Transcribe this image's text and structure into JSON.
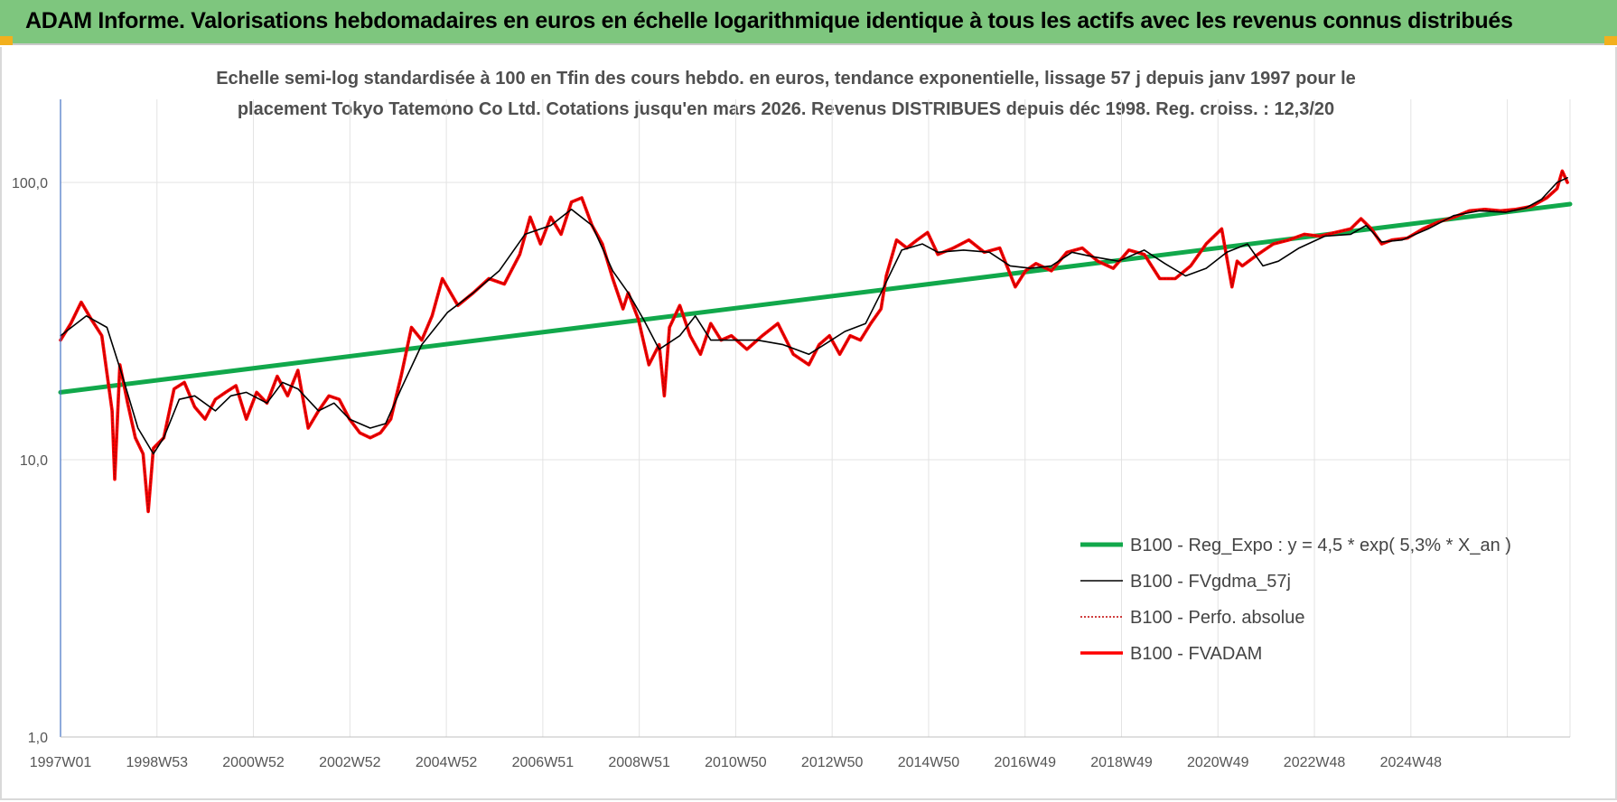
{
  "header": {
    "title": "ADAM Informe. Valorisations hebdomadaires en euros en échelle logarithmique identique à tous les actifs avec les revenus connus distribués"
  },
  "colors": {
    "header_bg": "#7ec67e",
    "regression": "#11a84b",
    "moving_average": "#000000",
    "perf_absolue": "#c00000",
    "fvadam": "#ff0000",
    "grid": "#e3e3e3",
    "axis": "#4472c4"
  },
  "chart_data": {
    "type": "line",
    "title_lines": [
      "Echelle semi-log standardisée à 100 en Tfin des cours hebdo. en euros, tendance exponentielle, lissage 57 j depuis janv 1997 pour le",
      "placement Tokyo Tatemono Co Ltd. Cotations jusqu'en mars 2026. Revenus DISTRIBUES depuis déc 1998. Reg. croiss. : 12,3/20"
    ],
    "yscale": "log",
    "ylim": [
      1,
      200
    ],
    "yticks": [
      1,
      10,
      100
    ],
    "ytick_labels": [
      "1,0",
      "10,0",
      "100,0"
    ],
    "xlim": [
      1997.0,
      2026.25
    ],
    "xtick_labels": [
      "1997W01",
      "1998W53",
      "2000W52",
      "2002W52",
      "2004W52",
      "2006W51",
      "2008W51",
      "2010W50",
      "2012W50",
      "2014W50",
      "2016W49",
      "2018W49",
      "2020W49",
      "2022W48",
      "2024W48"
    ],
    "grid": true,
    "legend_position": "lower-right",
    "series": [
      {
        "name": "B100 - Reg_Expo : y = 4,5 * exp( 5,3% *  X_an )",
        "style": "thick-green",
        "x": [
          1997.0,
          2026.25
        ],
        "y": [
          17.5,
          83.5
        ]
      },
      {
        "name": "B100 - FVgdma_57j",
        "style": "thin-black",
        "x": [
          1997.0,
          1997.5,
          1997.9,
          1998.2,
          1998.5,
          1998.8,
          1999.0,
          1999.3,
          1999.6,
          2000.0,
          2000.3,
          2000.6,
          2001.0,
          2001.3,
          2001.6,
          2002.0,
          2002.3,
          2002.6,
          2003.0,
          2003.3,
          2003.6,
          2004.0,
          2004.5,
          2005.0,
          2005.5,
          2006.0,
          2006.5,
          2006.9,
          2007.3,
          2007.7,
          2008.0,
          2008.3,
          2008.6,
          2009.0,
          2009.3,
          2009.6,
          2010.0,
          2010.5,
          2011.0,
          2011.5,
          2011.8,
          2012.2,
          2012.6,
          2012.9,
          2013.3,
          2013.7,
          2014.0,
          2014.5,
          2015.0,
          2015.4,
          2015.8,
          2016.2,
          2016.6,
          2017.0,
          2017.5,
          2018.0,
          2018.4,
          2018.8,
          2019.2,
          2019.6,
          2020.0,
          2020.3,
          2020.6,
          2021.0,
          2021.5,
          2022.0,
          2022.3,
          2022.6,
          2023.0,
          2023.5,
          2024.0,
          2024.5,
          2025.0,
          2025.4,
          2025.7,
          2026.0,
          2026.2
        ],
        "y": [
          28,
          33,
          30,
          20,
          13,
          10.5,
          12,
          16.5,
          17,
          15,
          17,
          17.5,
          16,
          19,
          18,
          15,
          16,
          14,
          13,
          13.5,
          18,
          26,
          34,
          40,
          48,
          65,
          70,
          80,
          70,
          48,
          40,
          32,
          25,
          28,
          33,
          27,
          27,
          27,
          26,
          24,
          26,
          29,
          31,
          40,
          57,
          60,
          56,
          57,
          56,
          50,
          49,
          50,
          56,
          54,
          52,
          57,
          51,
          46,
          49,
          56,
          60,
          50,
          52,
          58,
          64,
          65,
          70,
          61,
          62,
          68,
          76,
          79,
          78,
          81,
          87,
          100,
          104
        ]
      },
      {
        "name": "B100 - Perfo. absolue",
        "style": "dotted-darkred",
        "x": [
          1997.0,
          1997.2,
          1997.4,
          1997.6,
          1997.8,
          1998.0,
          1998.05,
          1998.15,
          1998.3,
          1998.45,
          1998.6,
          1998.7,
          1998.8,
          1999.0,
          1999.2,
          1999.4,
          1999.6,
          1999.8,
          2000.0,
          2000.2,
          2000.4,
          2000.6,
          2000.8,
          2001.0,
          2001.2,
          2001.4,
          2001.6,
          2001.8,
          2002.0,
          2002.2,
          2002.4,
          2002.6,
          2002.8,
          2003.0,
          2003.2,
          2003.4,
          2003.6,
          2003.8,
          2004.0,
          2004.2,
          2004.4,
          2004.7,
          2005.0,
          2005.3,
          2005.6,
          2005.9,
          2006.1,
          2006.3,
          2006.5,
          2006.7,
          2006.9,
          2007.1,
          2007.3,
          2007.5,
          2007.7,
          2007.9,
          2008.0,
          2008.2,
          2008.4,
          2008.6,
          2008.7,
          2008.8,
          2009.0,
          2009.2,
          2009.4,
          2009.6,
          2009.8,
          2010.0,
          2010.3,
          2010.6,
          2010.9,
          2011.2,
          2011.5,
          2011.7,
          2011.9,
          2012.1,
          2012.3,
          2012.5,
          2012.7,
          2012.9,
          2013.0,
          2013.2,
          2013.4,
          2013.6,
          2013.8,
          2014.0,
          2014.3,
          2014.6,
          2014.9,
          2015.2,
          2015.5,
          2015.7,
          2015.9,
          2016.2,
          2016.5,
          2016.8,
          2017.1,
          2017.4,
          2017.7,
          2018.0,
          2018.3,
          2018.6,
          2018.9,
          2019.2,
          2019.5,
          2019.7,
          2019.8,
          2019.9,
          2020.2,
          2020.5,
          2020.8,
          2021.1,
          2021.4,
          2021.7,
          2022.0,
          2022.2,
          2022.4,
          2022.6,
          2022.8,
          2023.1,
          2023.4,
          2023.7,
          2024.0,
          2024.3,
          2024.6,
          2024.9,
          2025.2,
          2025.5,
          2025.8,
          2026.0,
          2026.1,
          2026.2
        ],
        "y": [
          27,
          31,
          37,
          32,
          28,
          15,
          8.5,
          22,
          16,
          12,
          10.5,
          6.5,
          11,
          12,
          18,
          19,
          15.5,
          14,
          16.5,
          17.5,
          18.5,
          14,
          17.5,
          16,
          20,
          17,
          21,
          13,
          15,
          17,
          16.5,
          14,
          12.5,
          12,
          12.5,
          14,
          20,
          30,
          27,
          33,
          45,
          36,
          40,
          45,
          43,
          55,
          75,
          60,
          75,
          65,
          85,
          88,
          70,
          60,
          45,
          35,
          40,
          32,
          22,
          26,
          17,
          30,
          36,
          28,
          24,
          31,
          27,
          28,
          25,
          28,
          31,
          24,
          22,
          26,
          28,
          24,
          28,
          27,
          31,
          35,
          46,
          62,
          58,
          62,
          66,
          55,
          58,
          62,
          56,
          58,
          42,
          48,
          51,
          48,
          56,
          58,
          52,
          49,
          57,
          55,
          45,
          45,
          50,
          60,
          68,
          42,
          52,
          50,
          55,
          60,
          62,
          65,
          64,
          66,
          68,
          74,
          68,
          60,
          62,
          63,
          68,
          72,
          75,
          79,
          80,
          79,
          80,
          82,
          88,
          95,
          110,
          100
        ]
      },
      {
        "name": "B100 - FVADAM",
        "style": "thick-red",
        "x": [
          1997.0,
          1997.2,
          1997.4,
          1997.6,
          1997.8,
          1998.0,
          1998.05,
          1998.15,
          1998.3,
          1998.45,
          1998.6,
          1998.7,
          1998.8,
          1999.0,
          1999.2,
          1999.4,
          1999.6,
          1999.8,
          2000.0,
          2000.2,
          2000.4,
          2000.6,
          2000.8,
          2001.0,
          2001.2,
          2001.4,
          2001.6,
          2001.8,
          2002.0,
          2002.2,
          2002.4,
          2002.6,
          2002.8,
          2003.0,
          2003.2,
          2003.4,
          2003.6,
          2003.8,
          2004.0,
          2004.2,
          2004.4,
          2004.7,
          2005.0,
          2005.3,
          2005.6,
          2005.9,
          2006.1,
          2006.3,
          2006.5,
          2006.7,
          2006.9,
          2007.1,
          2007.3,
          2007.5,
          2007.7,
          2007.9,
          2008.0,
          2008.2,
          2008.4,
          2008.6,
          2008.7,
          2008.8,
          2009.0,
          2009.2,
          2009.4,
          2009.6,
          2009.8,
          2010.0,
          2010.3,
          2010.6,
          2010.9,
          2011.2,
          2011.5,
          2011.7,
          2011.9,
          2012.1,
          2012.3,
          2012.5,
          2012.7,
          2012.9,
          2013.0,
          2013.2,
          2013.4,
          2013.6,
          2013.8,
          2014.0,
          2014.3,
          2014.6,
          2014.9,
          2015.2,
          2015.5,
          2015.7,
          2015.9,
          2016.2,
          2016.5,
          2016.8,
          2017.1,
          2017.4,
          2017.7,
          2018.0,
          2018.3,
          2018.6,
          2018.9,
          2019.2,
          2019.5,
          2019.7,
          2019.8,
          2019.9,
          2020.2,
          2020.5,
          2020.8,
          2021.1,
          2021.4,
          2021.7,
          2022.0,
          2022.2,
          2022.4,
          2022.6,
          2022.8,
          2023.1,
          2023.4,
          2023.7,
          2024.0,
          2024.3,
          2024.6,
          2024.9,
          2025.2,
          2025.5,
          2025.8,
          2026.0,
          2026.1,
          2026.2
        ],
        "y": [
          27,
          31,
          37,
          32,
          28,
          15,
          8.5,
          22,
          16,
          12,
          10.5,
          6.5,
          11,
          12,
          18,
          19,
          15.5,
          14,
          16.5,
          17.5,
          18.5,
          14,
          17.5,
          16,
          20,
          17,
          21,
          13,
          15,
          17,
          16.5,
          14,
          12.5,
          12,
          12.5,
          14,
          20,
          30,
          27,
          33,
          45,
          36,
          40,
          45,
          43,
          55,
          75,
          60,
          75,
          65,
          85,
          88,
          70,
          60,
          45,
          35,
          40,
          32,
          22,
          26,
          17,
          30,
          36,
          28,
          24,
          31,
          27,
          28,
          25,
          28,
          31,
          24,
          22,
          26,
          28,
          24,
          28,
          27,
          31,
          35,
          46,
          62,
          58,
          62,
          66,
          55,
          58,
          62,
          56,
          58,
          42,
          48,
          51,
          48,
          56,
          58,
          52,
          49,
          57,
          55,
          45,
          45,
          50,
          60,
          68,
          42,
          52,
          50,
          55,
          60,
          62,
          65,
          64,
          66,
          68,
          74,
          68,
          60,
          62,
          63,
          68,
          72,
          75,
          79,
          80,
          79,
          80,
          82,
          88,
          95,
          110,
          100
        ]
      }
    ]
  }
}
